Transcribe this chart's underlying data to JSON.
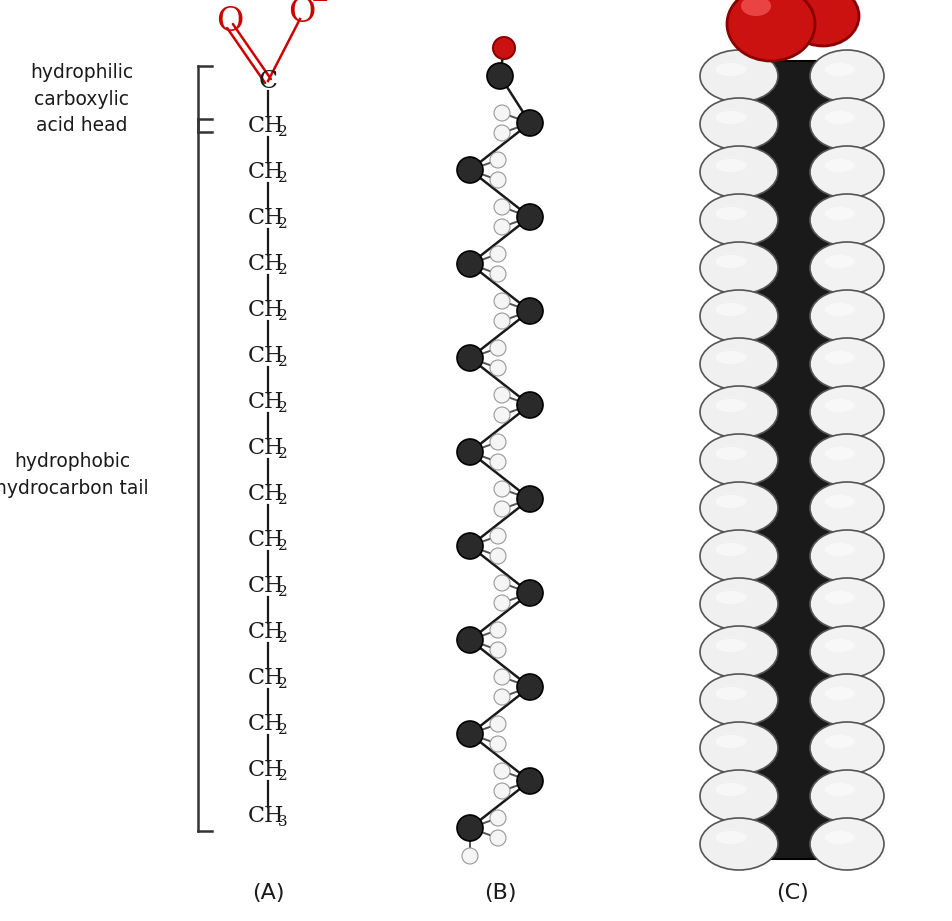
{
  "bg_color": "#ffffff",
  "fig_width": 9.53,
  "fig_height": 9.21,
  "label_A": "(A)",
  "label_B": "(B)",
  "label_C": "(C)",
  "annotation_head": "hydrophilic\ncarboxylic\nacid head",
  "annotation_tail": "hydrophobic\nhydrocarbon tail",
  "O_color": "#cc0000",
  "chain_color": "#1a1a1a",
  "bond_color": "#1a1a1a",
  "ball_carbon_color": "#2a2a2a",
  "ball_carbon_edge": "#000000",
  "ball_hydrogen_color": "#f5f5f5",
  "ball_hydrogen_edge": "#999999",
  "ball_oxygen_color": "#cc1111",
  "ball_oxygen_edge": "#880000",
  "space_main_color": "#f8f8f8",
  "space_main_edge": "#333333",
  "space_shadow_color": "#cccccc",
  "space_oxygen_color": "#cc1111",
  "space_oxygen_edge": "#880000",
  "space_bg_color": "#2a2a2a",
  "n_carbons": 17
}
